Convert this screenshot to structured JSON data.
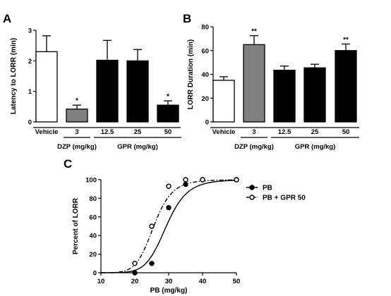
{
  "chart_data": [
    {
      "panel_label": "A",
      "type": "bar",
      "ylabel": "Latency to LORR (min)",
      "ylim": [
        0,
        3
      ],
      "yticks": [
        "0",
        "1",
        "2",
        "3"
      ],
      "categories": [
        "Vehicle",
        "3",
        "12.5",
        "25",
        "50"
      ],
      "values": [
        2.3,
        0.42,
        2.02,
        2.0,
        0.55
      ],
      "errors": [
        0.52,
        0.13,
        0.65,
        0.37,
        0.14
      ],
      "fills": [
        "#ffffff",
        "#808080",
        "#000000",
        "#000000",
        "#000000"
      ],
      "significance": [
        "",
        "*",
        "",
        "",
        "*"
      ],
      "groups": [
        {
          "label": "DZP (mg/kg)",
          "categories": [
            1
          ]
        },
        {
          "label": "GPR  (mg/kg)",
          "categories": [
            2,
            3,
            4
          ]
        }
      ]
    },
    {
      "panel_label": "B",
      "type": "bar",
      "ylabel": "LORR Duration (min)",
      "ylim": [
        0,
        80
      ],
      "yticks": [
        "0",
        "20",
        "40",
        "60",
        "80"
      ],
      "categories": [
        "Vehicle",
        "3",
        "12.5",
        "25",
        "50"
      ],
      "values": [
        35,
        65,
        43.5,
        45.5,
        60
      ],
      "errors": [
        3,
        7.5,
        3.5,
        3,
        5.5
      ],
      "fills": [
        "#ffffff",
        "#808080",
        "#000000",
        "#000000",
        "#000000"
      ],
      "significance": [
        "",
        "**",
        "",
        "",
        "**"
      ],
      "groups": [
        {
          "label": "DZP (mg/kg)",
          "categories": [
            1
          ]
        },
        {
          "label": "GPR  (mg/kg)",
          "categories": [
            2,
            3,
            4
          ]
        }
      ]
    },
    {
      "panel_label": "C",
      "type": "line",
      "xlabel": "PB (mg/kg)",
      "ylabel": "Percent of LORR",
      "xlim": [
        10,
        50
      ],
      "ylim": [
        0,
        100
      ],
      "xticks": [
        "10",
        "20",
        "30",
        "40",
        "50"
      ],
      "yticks": [
        "0",
        "20",
        "40",
        "60",
        "80",
        "100"
      ],
      "legend_position": "right",
      "series": [
        {
          "name": "PB",
          "style": "solid",
          "marker": "filled-circle",
          "points": [
            [
              20,
              0
            ],
            [
              25,
              10
            ],
            [
              30,
              70
            ],
            [
              35,
              95
            ],
            [
              40,
              100
            ],
            [
              50,
              100
            ]
          ],
          "curve": {
            "ec50": 29.3,
            "hill": 9.5
          }
        },
        {
          "name": "PB + GPR 50",
          "style": "dash-dot",
          "marker": "open-circle",
          "points": [
            [
              20,
              10
            ],
            [
              25,
              50
            ],
            [
              30,
              93
            ],
            [
              35,
              100
            ],
            [
              40,
              100
            ],
            [
              50,
              100
            ]
          ],
          "curve": {
            "ec50": 25.6,
            "hill": 9.5
          }
        }
      ]
    }
  ]
}
